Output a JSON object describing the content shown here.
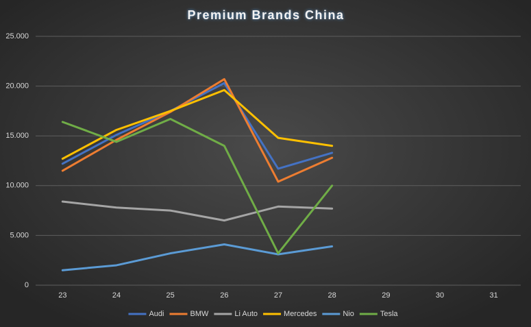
{
  "chart_data": {
    "type": "line",
    "title": "Premium Brands China",
    "categories": [
      "23",
      "24",
      "25",
      "26",
      "27",
      "28",
      "29",
      "30",
      "31"
    ],
    "series": [
      {
        "name": "Audi",
        "color": "#4472c4",
        "values": [
          12200,
          15100,
          17500,
          20300,
          11700,
          13300,
          null,
          null,
          null
        ]
      },
      {
        "name": "BMW",
        "color": "#ed7d31",
        "values": [
          11500,
          14600,
          17400,
          20700,
          10400,
          12800,
          null,
          null,
          null
        ]
      },
      {
        "name": "Li Auto",
        "color": "#a5a5a5",
        "values": [
          8400,
          7800,
          7500,
          6500,
          7900,
          7700,
          null,
          null,
          null
        ]
      },
      {
        "name": "Mercedes",
        "color": "#ffc000",
        "values": [
          12700,
          15600,
          17500,
          19600,
          14800,
          14000,
          null,
          null,
          null
        ]
      },
      {
        "name": "Nio",
        "color": "#5b9bd5",
        "values": [
          1500,
          2000,
          3200,
          4100,
          3100,
          3900,
          null,
          null,
          null
        ]
      },
      {
        "name": "Tesla",
        "color": "#70ad47",
        "values": [
          16400,
          14400,
          16700,
          14000,
          3200,
          10000,
          null,
          null,
          null
        ]
      }
    ],
    "ylim": [
      0,
      25000
    ],
    "yticks": [
      0,
      {
        "value": 5000,
        "label": "5.000"
      },
      {
        "value": 10000,
        "label": "10.000"
      },
      {
        "value": 15000,
        "label": "15.000"
      },
      {
        "value": 20000,
        "label": "20.000"
      },
      {
        "value": 25000,
        "label": "25.000"
      }
    ],
    "grid": true,
    "legend": "bottom"
  }
}
